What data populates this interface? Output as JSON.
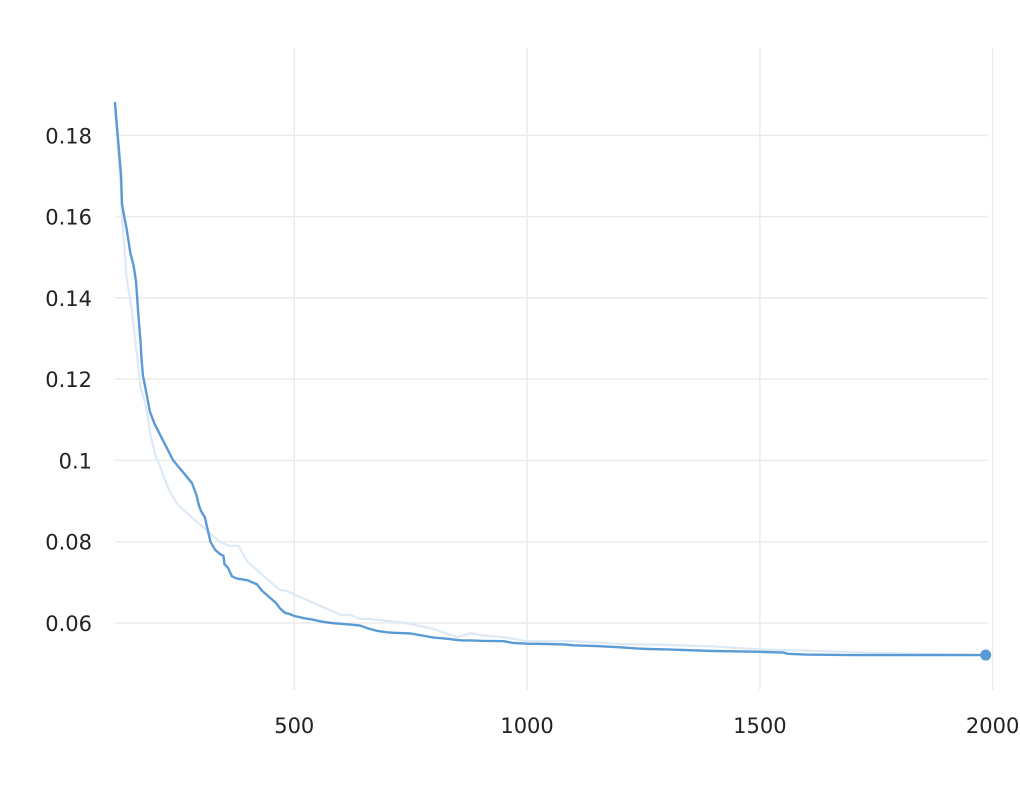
{
  "chart_data": {
    "type": "line",
    "title": "",
    "xlabel": "",
    "ylabel": "",
    "xlim": [
      115,
      1990
    ],
    "ylim": [
      0.0435,
      0.2015
    ],
    "x_ticks": [
      {
        "value": 500,
        "label": "500"
      },
      {
        "value": 1000,
        "label": "1000"
      },
      {
        "value": 1500,
        "label": "1500"
      },
      {
        "value": 2000,
        "label": "2000"
      }
    ],
    "y_ticks": [
      {
        "value": 0.06,
        "label": "0.06"
      },
      {
        "value": 0.08,
        "label": "0.08"
      },
      {
        "value": 0.1,
        "label": "0.1"
      },
      {
        "value": 0.12,
        "label": "0.12"
      },
      {
        "value": 0.14,
        "label": "0.14"
      },
      {
        "value": 0.16,
        "label": "0.16"
      },
      {
        "value": 0.18,
        "label": "0.18"
      }
    ],
    "grid": true,
    "legend": "none",
    "colors": {
      "main": "#5b9bd5",
      "faded": "#dde9f6",
      "grid": "#ebebeb",
      "text": "#222222"
    },
    "series": [
      {
        "style": "faded",
        "x": [
          115,
          122,
          126,
          130,
          140,
          150,
          160,
          170,
          180,
          185,
          190,
          200,
          210,
          220,
          230,
          250,
          270,
          290,
          300,
          320,
          340,
          360,
          380,
          390,
          400,
          410,
          420,
          430,
          440,
          450,
          460,
          470,
          480,
          500,
          520,
          540,
          560,
          580,
          600,
          620,
          640,
          660,
          700,
          740,
          800,
          850,
          880,
          900,
          950,
          1000,
          1100,
          1200,
          1300,
          1400,
          1500,
          1600,
          1700,
          1800,
          1900,
          1985
        ],
        "y": [
          0.186,
          0.176,
          0.17,
          0.16,
          0.145,
          0.138,
          0.128,
          0.118,
          0.114,
          0.111,
          0.107,
          0.102,
          0.099,
          0.096,
          0.093,
          0.089,
          0.087,
          0.085,
          0.084,
          0.082,
          0.08,
          0.079,
          0.079,
          0.077,
          0.075,
          0.074,
          0.073,
          0.072,
          0.071,
          0.07,
          0.069,
          0.068,
          0.068,
          0.067,
          0.066,
          0.065,
          0.064,
          0.063,
          0.062,
          0.062,
          0.061,
          0.061,
          0.0605,
          0.06,
          0.0585,
          0.0565,
          0.0575,
          0.057,
          0.0565,
          0.0555,
          0.0555,
          0.0548,
          0.0546,
          0.0542,
          0.0535,
          0.0532,
          0.0528,
          0.0525,
          0.0523,
          0.0521
        ]
      },
      {
        "style": "main",
        "x": [
          115,
          128,
          130,
          140,
          148,
          155,
          160,
          165,
          170,
          172,
          175,
          180,
          190,
          200,
          240,
          280,
          290,
          295,
          300,
          308,
          320,
          330,
          340,
          348,
          350,
          358,
          366,
          375,
          400,
          420,
          430,
          440,
          450,
          460,
          470,
          480,
          490,
          500,
          520,
          540,
          560,
          580,
          600,
          620,
          640,
          650,
          660,
          680,
          700,
          710,
          750,
          800,
          830,
          850,
          860,
          870,
          880,
          900,
          950,
          960,
          970,
          1000,
          1050,
          1080,
          1100,
          1150,
          1200,
          1240,
          1260,
          1300,
          1400,
          1460,
          1500,
          1550,
          1560,
          1600,
          1700,
          1800,
          1900,
          1985
        ],
        "y": [
          0.188,
          0.17,
          0.163,
          0.157,
          0.151,
          0.148,
          0.144,
          0.136,
          0.129,
          0.125,
          0.121,
          0.118,
          0.112,
          0.109,
          0.1,
          0.0945,
          0.0915,
          0.089,
          0.0875,
          0.086,
          0.08,
          0.078,
          0.077,
          0.0765,
          0.0745,
          0.0735,
          0.0715,
          0.071,
          0.0705,
          0.0695,
          0.068,
          0.067,
          0.066,
          0.065,
          0.0635,
          0.0625,
          0.0622,
          0.0617,
          0.0612,
          0.0608,
          0.0603,
          0.06,
          0.0598,
          0.0596,
          0.0594,
          0.059,
          0.0586,
          0.058,
          0.0577,
          0.0576,
          0.0574,
          0.0564,
          0.0561,
          0.0558,
          0.0557,
          0.0557,
          0.0557,
          0.0556,
          0.0555,
          0.0553,
          0.0551,
          0.0549,
          0.0548,
          0.0547,
          0.0545,
          0.0543,
          0.054,
          0.0537,
          0.0536,
          0.0535,
          0.0531,
          0.053,
          0.0529,
          0.0527,
          0.0524,
          0.0522,
          0.0521,
          0.0521,
          0.0521,
          0.0521
        ]
      }
    ],
    "endpoint": {
      "x": 1985,
      "y": 0.0521
    }
  }
}
